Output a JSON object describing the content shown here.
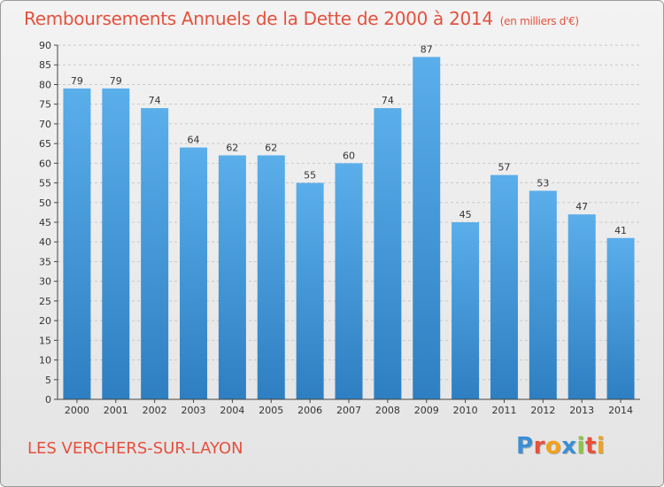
{
  "header": {
    "title": "Remboursements Annuels de la Dette de 2000 à 2014",
    "unit": "(en milliers d'€)"
  },
  "footer": {
    "place": "LES VERCHERS-SUR-LAYON",
    "logo_text": "Proxiti",
    "logo_colors": [
      "#3a8fd6",
      "#e4513d",
      "#f2a21b",
      "#3a8fd6",
      "#8cc63f",
      "#e4513d",
      "#f2a21b"
    ]
  },
  "chart_data": {
    "type": "bar",
    "categories": [
      "2000",
      "2001",
      "2002",
      "2003",
      "2004",
      "2005",
      "2006",
      "2007",
      "2008",
      "2009",
      "2010",
      "2011",
      "2012",
      "2013",
      "2014"
    ],
    "values": [
      79,
      79,
      74,
      64,
      62,
      62,
      55,
      60,
      74,
      87,
      45,
      57,
      53,
      47,
      41
    ],
    "ylim": [
      0,
      90
    ],
    "yticks": [
      0,
      5,
      10,
      15,
      20,
      25,
      30,
      35,
      40,
      45,
      50,
      55,
      60,
      65,
      70,
      75,
      80,
      85,
      90
    ],
    "grid": true,
    "bar_color_top": "#5aaeea",
    "bar_color_bottom": "#2e7fc2"
  }
}
